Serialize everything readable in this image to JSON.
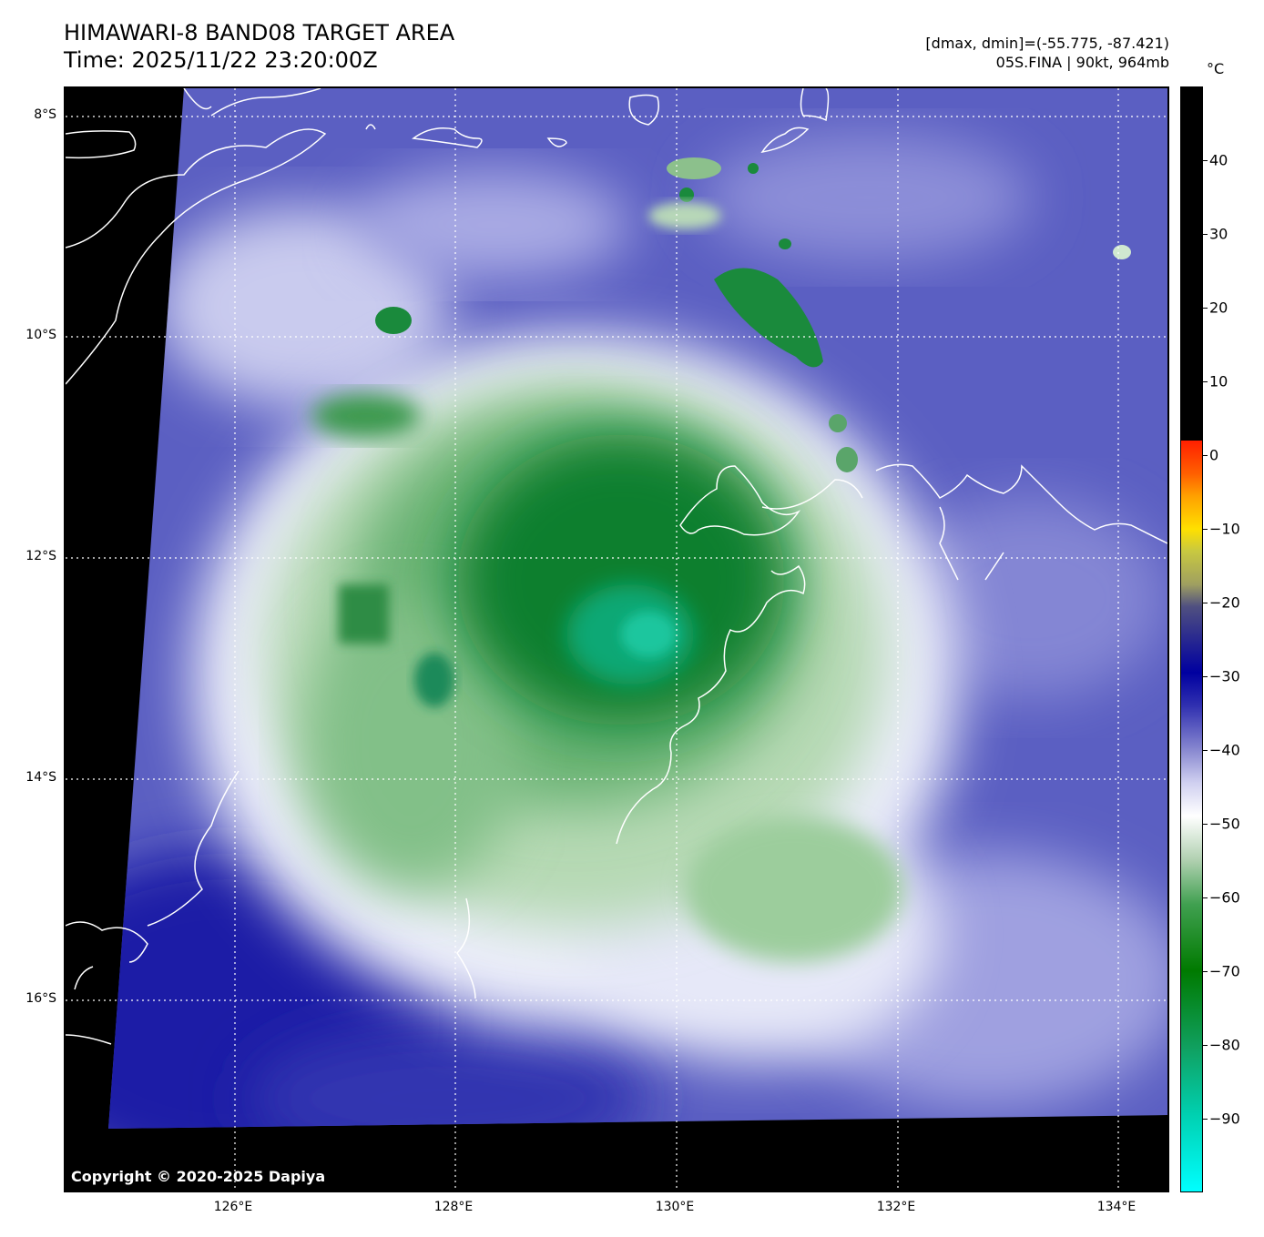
{
  "header": {
    "title_line1": "HIMAWARI-8 BAND08 TARGET AREA",
    "title_line2": "Time: 2025/11/22 23:20:00Z",
    "stats": "[dmax, dmin]=(-55.775, -87.421)",
    "storm": "05S.FINA | 90kt, 964mb"
  },
  "map": {
    "lat_labels": [
      "8°S",
      "10°S",
      "12°S",
      "14°S",
      "16°S"
    ],
    "lon_labels": [
      "126°E",
      "128°E",
      "130°E",
      "132°E",
      "134°E"
    ],
    "copyright": "Copyright © 2020-2025 Dapiya",
    "colors": {
      "background_cloud": "#5a5ec0",
      "warm_space": "#000000",
      "cold_core": "#0a8a3a",
      "coldest": "#00c8a0",
      "coast": "#ffffff"
    }
  },
  "colorbar": {
    "unit": "°C",
    "tick_labels": [
      "40",
      "30",
      "20",
      "10",
      "0",
      "−10",
      "−20",
      "−30",
      "−40",
      "−50",
      "−60",
      "−70",
      "−80",
      "−90"
    ],
    "range": [
      -100,
      50
    ]
  }
}
